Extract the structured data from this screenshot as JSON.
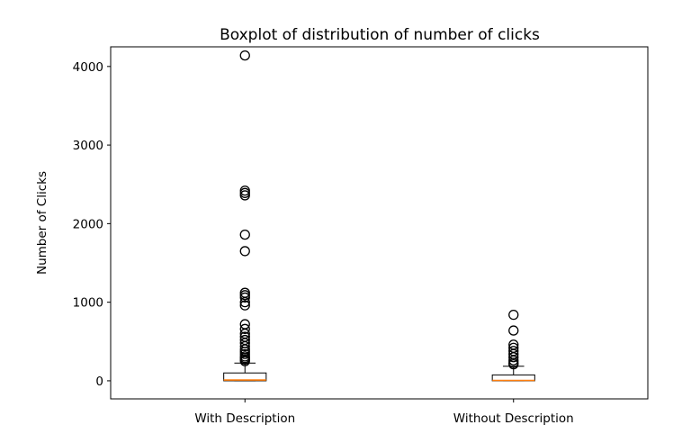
{
  "chart_data": {
    "type": "boxplot",
    "title": "Boxplot of distribution of number of clicks",
    "xlabel": "",
    "ylabel": "Number of Clicks",
    "ylim": [
      -230,
      4250
    ],
    "yticks": [
      0,
      1000,
      2000,
      3000,
      4000
    ],
    "grid": false,
    "categories": [
      "With Description",
      "Without Description"
    ],
    "boxes": [
      {
        "name": "With Description",
        "whisker_low": 0,
        "q1": 0,
        "median": 10,
        "q3": 100,
        "whisker_high": 225,
        "outliers": [
          4140,
          2420,
          2390,
          2360,
          1860,
          1650,
          1120,
          1090,
          1060,
          1000,
          960,
          720,
          660,
          600,
          560,
          520,
          480,
          440,
          400,
          370,
          340,
          310,
          290,
          270,
          250
        ]
      },
      {
        "name": "Without Description",
        "whisker_low": 0,
        "q1": 0,
        "median": 5,
        "q3": 75,
        "whisker_high": 185,
        "outliers": [
          840,
          640,
          460,
          420,
          380,
          340,
          300,
          260,
          230,
          210
        ]
      }
    ],
    "colors": {
      "box": "#000000",
      "median": "#ff7f0e",
      "outlier_edge": "#000000"
    }
  }
}
